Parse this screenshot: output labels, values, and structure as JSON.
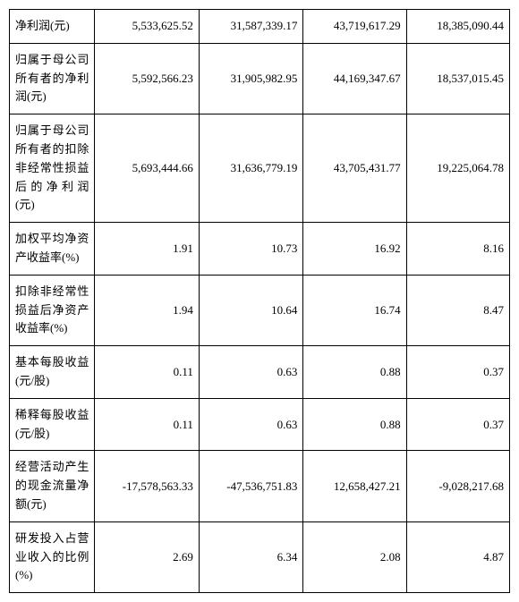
{
  "table": {
    "rows": [
      {
        "label": "净利润(元)",
        "values": [
          "5,533,625.52",
          "31,587,339.17",
          "43,719,617.29",
          "18,385,090.44"
        ]
      },
      {
        "label": "归属于母公司所有者的净利润(元)",
        "values": [
          "5,592,566.23",
          "31,905,982.95",
          "44,169,347.67",
          "18,537,015.45"
        ]
      },
      {
        "label": "归属于母公司所有者的扣除非经常性损益后的净利润(元)",
        "values": [
          "5,693,444.66",
          "31,636,779.19",
          "43,705,431.77",
          "19,225,064.78"
        ]
      },
      {
        "label": "加权平均净资产收益率(%)",
        "values": [
          "1.91",
          "10.73",
          "16.92",
          "8.16"
        ]
      },
      {
        "label": "扣除非经常性损益后净资产收益率(%)",
        "values": [
          "1.94",
          "10.64",
          "16.74",
          "8.47"
        ]
      },
      {
        "label": "基本每股收益(元/股)",
        "values": [
          "0.11",
          "0.63",
          "0.88",
          "0.37"
        ]
      },
      {
        "label": "稀释每股收益(元/股)",
        "values": [
          "0.11",
          "0.63",
          "0.88",
          "0.37"
        ]
      },
      {
        "label": "经营活动产生的现金流量净额(元)",
        "values": [
          "-17,578,563.33",
          "-47,536,751.83",
          "12,658,427.21",
          "-9,028,217.68"
        ]
      },
      {
        "label": "研发投入占营业收入的比例(%)",
        "values": [
          "2.69",
          "6.34",
          "2.08",
          "4.87"
        ]
      }
    ]
  }
}
